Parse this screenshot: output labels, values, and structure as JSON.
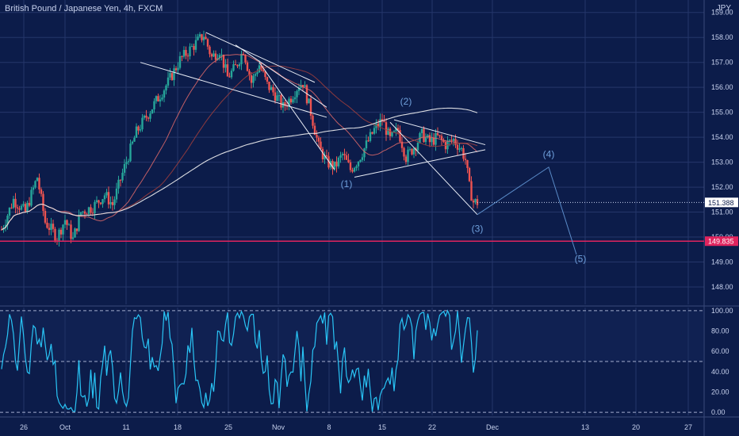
{
  "header": {
    "symbol_title": "British Pound / Japanese Yen, 4h, FXCM",
    "currency": "JPY"
  },
  "colors": {
    "background": "#0c1c4a",
    "grid": "#25366a",
    "axis_text": "#c8d2ee",
    "candle_up": "#26a69a",
    "candle_down": "#ef5350",
    "oscillator": "#29c5f6",
    "support_line": "#e0245e",
    "current_price_tag": "#ffffff",
    "ma_fast": "#e26a6a",
    "ma_slow": "#9b3d3d",
    "ma_200": "#f2f2f2",
    "wave_line": "#5a8bc8",
    "wave_label": "#6fa0dc"
  },
  "chart_data": [
    {
      "type": "candlestick",
      "title": "British Pound / Japanese Yen, 4h, FXCM",
      "ylabel": "JPY",
      "ylim": [
        147.3,
        159.5
      ],
      "y_ticks": [
        "148.00",
        "149.00",
        "150.00",
        "151.00",
        "152.00",
        "153.00",
        "154.00",
        "155.00",
        "156.00",
        "157.00",
        "158.00",
        "159.00"
      ],
      "x_ticks": [
        "26",
        "Oct",
        "11",
        "18",
        "25",
        "Nov",
        "8",
        "15",
        "22",
        "Dec",
        "13",
        "20",
        "27"
      ],
      "price_tags": {
        "current": "151.388",
        "support": "149.835"
      },
      "support_level": 149.835,
      "current_price": 151.388,
      "price_path": [
        {
          "t": 0,
          "p": 150.3
        },
        {
          "t": 3,
          "p": 151.5
        },
        {
          "t": 6,
          "p": 151.0
        },
        {
          "t": 9,
          "p": 152.4
        },
        {
          "t": 11,
          "p": 150.6
        },
        {
          "t": 14,
          "p": 150.0
        },
        {
          "t": 16,
          "p": 150.7
        },
        {
          "t": 18,
          "p": 149.9
        },
        {
          "t": 20,
          "p": 151.0
        },
        {
          "t": 23,
          "p": 151.2
        },
        {
          "t": 26,
          "p": 151.7
        },
        {
          "t": 28,
          "p": 151.3
        },
        {
          "t": 31,
          "p": 152.8
        },
        {
          "t": 34,
          "p": 154.2
        },
        {
          "t": 38,
          "p": 155.2
        },
        {
          "t": 42,
          "p": 156.2
        },
        {
          "t": 45,
          "p": 157.1
        },
        {
          "t": 48,
          "p": 157.6
        },
        {
          "t": 51,
          "p": 158.1
        },
        {
          "t": 53,
          "p": 157.2
        },
        {
          "t": 55,
          "p": 157.5
        },
        {
          "t": 57,
          "p": 156.4
        },
        {
          "t": 59,
          "p": 156.8
        },
        {
          "t": 61,
          "p": 157.5
        },
        {
          "t": 63,
          "p": 156.2
        },
        {
          "t": 65,
          "p": 156.9
        },
        {
          "t": 67,
          "p": 156.1
        },
        {
          "t": 69,
          "p": 155.7
        },
        {
          "t": 71,
          "p": 155.2
        },
        {
          "t": 73,
          "p": 155.6
        },
        {
          "t": 75,
          "p": 156.1
        },
        {
          "t": 76,
          "p": 156.2
        },
        {
          "t": 78,
          "p": 155.0
        },
        {
          "t": 80,
          "p": 153.6
        },
        {
          "t": 82,
          "p": 153.0
        },
        {
          "t": 84,
          "p": 152.8
        },
        {
          "t": 86,
          "p": 153.3
        },
        {
          "t": 88,
          "p": 152.7
        },
        {
          "t": 90,
          "p": 153.1
        },
        {
          "t": 92,
          "p": 153.7
        },
        {
          "t": 94,
          "p": 154.3
        },
        {
          "t": 96,
          "p": 154.7
        },
        {
          "t": 98,
          "p": 153.9
        },
        {
          "t": 100,
          "p": 154.3
        },
        {
          "t": 102,
          "p": 153.2
        },
        {
          "t": 104,
          "p": 153.6
        },
        {
          "t": 106,
          "p": 154.1
        },
        {
          "t": 108,
          "p": 153.8
        },
        {
          "t": 110,
          "p": 154.0
        },
        {
          "t": 112,
          "p": 153.7
        },
        {
          "t": 114,
          "p": 153.9
        },
        {
          "t": 116,
          "p": 153.5
        },
        {
          "t": 117,
          "p": 153.1
        },
        {
          "t": 118,
          "p": 152.0
        },
        {
          "t": 119,
          "p": 151.4
        },
        {
          "t": 120,
          "p": 151.388
        }
      ],
      "trendlines": [
        {
          "points": [
            [
              51.5,
              158.2
            ],
            [
              79,
              156.2
            ]
          ]
        },
        {
          "points": [
            [
              35,
              157.0
            ],
            [
              82,
              154.8
            ]
          ]
        },
        {
          "points": [
            [
              59,
              157.7
            ],
            [
              82,
              155.2
            ]
          ]
        },
        {
          "points": [
            [
              99,
              154.7
            ],
            [
              122,
              153.7
            ]
          ]
        },
        {
          "points": [
            [
              89,
              152.4
            ],
            [
              122,
              153.5
            ]
          ]
        },
        {
          "points": [
            [
              65,
              157.0
            ],
            [
              84,
              152.7
            ]
          ]
        },
        {
          "points": [
            [
              98,
              154.6
            ],
            [
              120,
              150.9
            ]
          ]
        }
      ],
      "wave_projection": [
        {
          "label": "(3)",
          "t": 120,
          "p": 150.9
        },
        {
          "label": "(4)",
          "t": 138,
          "p": 152.8
        },
        {
          "label": "(5)",
          "t": 145,
          "p": 149.3
        }
      ],
      "wave_labels": [
        {
          "label": "(1)",
          "t": 87,
          "p": 152.0
        },
        {
          "label": "(2)",
          "t": 102,
          "p": 155.3
        },
        {
          "label": "(3)",
          "t": 120,
          "p": 150.2
        },
        {
          "label": "(4)",
          "t": 138,
          "p": 153.2
        },
        {
          "label": "(5)",
          "t": 146,
          "p": 149.0
        }
      ]
    },
    {
      "type": "line",
      "ylim": [
        -3,
        103
      ],
      "y_ticks": [
        "0.00",
        "20.00",
        "40.00",
        "60.00",
        "80.00",
        "100.00"
      ],
      "reference_levels": [
        0,
        50,
        100
      ]
    }
  ]
}
